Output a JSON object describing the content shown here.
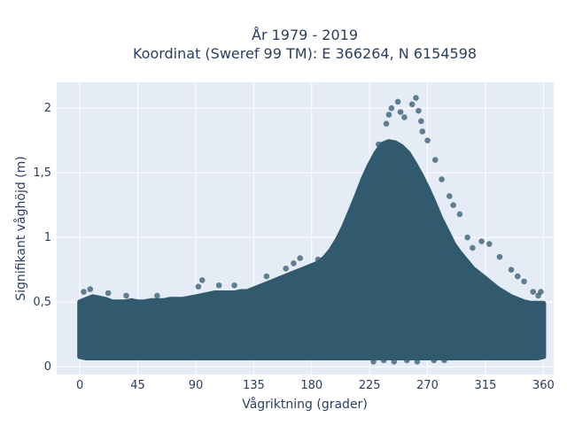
{
  "chart_data": {
    "type": "scatter",
    "title_lines": [
      "År 1979 - 2019",
      "Koordinat (Sweref 99 TM): E 366264, N 6154598"
    ],
    "xlabel": "Vågriktning (grader)",
    "ylabel": "Signifikant våghöjd (m)",
    "xlim": [
      -18,
      368
    ],
    "ylim": [
      -0.06,
      2.2
    ],
    "x_ticks": [
      0,
      45,
      90,
      135,
      180,
      225,
      270,
      315,
      360
    ],
    "x_tick_labels": [
      "0",
      "45",
      "90",
      "135",
      "180",
      "225",
      "270",
      "315",
      "360"
    ],
    "y_ticks": [
      0,
      0.5,
      1,
      1.5,
      2
    ],
    "y_tick_labels": [
      "0",
      "0,5",
      "1",
      "1,5",
      "2"
    ],
    "grid": true,
    "legend": "none",
    "marker_color": "#325a6f",
    "background": "#e5ecf6",
    "envelope": {
      "x": [
        0,
        5,
        10,
        15,
        20,
        25,
        30,
        35,
        40,
        45,
        50,
        55,
        60,
        65,
        70,
        75,
        80,
        85,
        90,
        95,
        100,
        105,
        110,
        115,
        120,
        125,
        130,
        135,
        140,
        145,
        150,
        155,
        160,
        165,
        170,
        175,
        180,
        185,
        190,
        195,
        200,
        205,
        210,
        215,
        220,
        225,
        230,
        235,
        240,
        245,
        250,
        255,
        260,
        265,
        270,
        275,
        280,
        285,
        290,
        295,
        300,
        305,
        310,
        315,
        320,
        325,
        330,
        335,
        340,
        345,
        350,
        355,
        360
      ],
      "y_low": [
        0.08,
        0.07,
        0.07,
        0.07,
        0.07,
        0.07,
        0.07,
        0.07,
        0.07,
        0.07,
        0.07,
        0.07,
        0.07,
        0.07,
        0.07,
        0.07,
        0.07,
        0.07,
        0.07,
        0.07,
        0.07,
        0.07,
        0.07,
        0.07,
        0.07,
        0.07,
        0.07,
        0.07,
        0.07,
        0.07,
        0.07,
        0.07,
        0.07,
        0.07,
        0.07,
        0.07,
        0.07,
        0.07,
        0.07,
        0.07,
        0.07,
        0.07,
        0.07,
        0.07,
        0.07,
        0.07,
        0.07,
        0.07,
        0.07,
        0.07,
        0.07,
        0.07,
        0.07,
        0.07,
        0.07,
        0.07,
        0.07,
        0.07,
        0.07,
        0.07,
        0.07,
        0.07,
        0.07,
        0.07,
        0.07,
        0.07,
        0.07,
        0.07,
        0.07,
        0.07,
        0.07,
        0.07,
        0.08
      ],
      "y_high": [
        0.5,
        0.52,
        0.54,
        0.53,
        0.52,
        0.5,
        0.5,
        0.5,
        0.51,
        0.5,
        0.5,
        0.51,
        0.51,
        0.51,
        0.52,
        0.52,
        0.52,
        0.53,
        0.54,
        0.55,
        0.56,
        0.57,
        0.57,
        0.57,
        0.57,
        0.58,
        0.58,
        0.6,
        0.62,
        0.64,
        0.66,
        0.68,
        0.7,
        0.72,
        0.74,
        0.76,
        0.78,
        0.8,
        0.84,
        0.9,
        0.98,
        1.08,
        1.2,
        1.32,
        1.45,
        1.56,
        1.65,
        1.72,
        1.74,
        1.73,
        1.7,
        1.65,
        1.57,
        1.48,
        1.38,
        1.27,
        1.15,
        1.05,
        0.95,
        0.88,
        0.82,
        0.76,
        0.72,
        0.68,
        0.64,
        0.6,
        0.57,
        0.54,
        0.52,
        0.5,
        0.49,
        0.49,
        0.49
      ]
    },
    "outliers": [
      {
        "x": 3,
        "y": 0.58
      },
      {
        "x": 8,
        "y": 0.6
      },
      {
        "x": 22,
        "y": 0.57
      },
      {
        "x": 36,
        "y": 0.55
      },
      {
        "x": 60,
        "y": 0.55
      },
      {
        "x": 92,
        "y": 0.62
      },
      {
        "x": 95,
        "y": 0.67
      },
      {
        "x": 108,
        "y": 0.63
      },
      {
        "x": 120,
        "y": 0.63
      },
      {
        "x": 145,
        "y": 0.7
      },
      {
        "x": 160,
        "y": 0.76
      },
      {
        "x": 166,
        "y": 0.8
      },
      {
        "x": 171,
        "y": 0.84
      },
      {
        "x": 185,
        "y": 0.83
      },
      {
        "x": 208,
        "y": 1.12
      },
      {
        "x": 216,
        "y": 1.33
      },
      {
        "x": 225,
        "y": 1.55
      },
      {
        "x": 229,
        "y": 1.62
      },
      {
        "x": 232,
        "y": 1.72
      },
      {
        "x": 238,
        "y": 1.88
      },
      {
        "x": 240,
        "y": 1.95
      },
      {
        "x": 242,
        "y": 2.0
      },
      {
        "x": 247,
        "y": 2.05
      },
      {
        "x": 249,
        "y": 1.97
      },
      {
        "x": 252,
        "y": 1.93
      },
      {
        "x": 258,
        "y": 2.03
      },
      {
        "x": 261,
        "y": 2.08
      },
      {
        "x": 263,
        "y": 1.98
      },
      {
        "x": 265,
        "y": 1.9
      },
      {
        "x": 266,
        "y": 1.82
      },
      {
        "x": 270,
        "y": 1.75
      },
      {
        "x": 276,
        "y": 1.6
      },
      {
        "x": 281,
        "y": 1.45
      },
      {
        "x": 287,
        "y": 1.32
      },
      {
        "x": 290,
        "y": 1.25
      },
      {
        "x": 295,
        "y": 1.18
      },
      {
        "x": 301,
        "y": 1.0
      },
      {
        "x": 305,
        "y": 0.92
      },
      {
        "x": 312,
        "y": 0.97
      },
      {
        "x": 318,
        "y": 0.95
      },
      {
        "x": 326,
        "y": 0.85
      },
      {
        "x": 335,
        "y": 0.75
      },
      {
        "x": 340,
        "y": 0.7
      },
      {
        "x": 345,
        "y": 0.66
      },
      {
        "x": 352,
        "y": 0.58
      },
      {
        "x": 356,
        "y": 0.55
      },
      {
        "x": 358,
        "y": 0.58
      },
      {
        "x": 236,
        "y": 0.05
      },
      {
        "x": 244,
        "y": 0.04
      },
      {
        "x": 254,
        "y": 0.05
      },
      {
        "x": 262,
        "y": 0.04
      },
      {
        "x": 275,
        "y": 0.05
      },
      {
        "x": 283,
        "y": 0.05
      },
      {
        "x": 228,
        "y": 0.04
      }
    ]
  }
}
